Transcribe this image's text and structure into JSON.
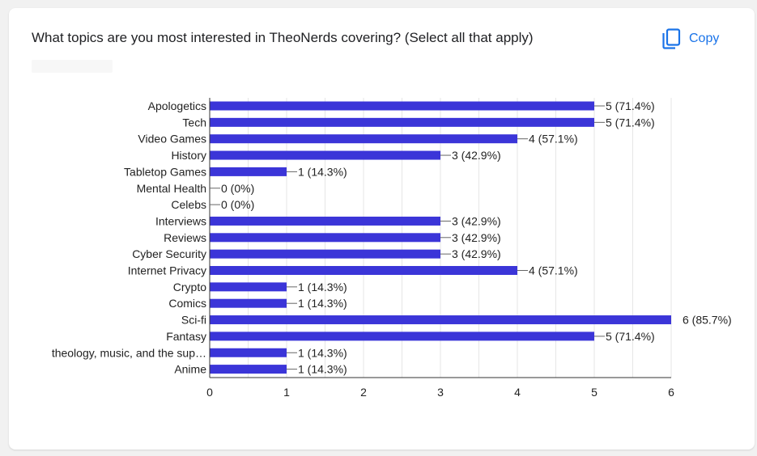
{
  "question": {
    "title": "What topics are you most interested in TheoNerds covering? (Select all that apply)"
  },
  "copy_button": {
    "label": "Copy",
    "icon": "copy-icon"
  },
  "colors": {
    "bar": "#3b35d8",
    "link": "#1a73e8",
    "grid": "#e6e6e6"
  },
  "chart_data": {
    "type": "bar",
    "orientation": "horizontal",
    "title": "",
    "xlabel": "",
    "ylabel": "",
    "xlim": [
      0,
      6
    ],
    "xticks": [
      0,
      1,
      2,
      3,
      4,
      5,
      6
    ],
    "grid": true,
    "categories": [
      "Apologetics",
      "Tech",
      "Video Games",
      "History",
      "Tabletop Games",
      "Mental Health",
      "Celebs",
      "Interviews",
      "Reviews",
      "Cyber Security",
      "Internet Privacy",
      "Crypto",
      "Comics",
      "Sci-fi",
      "Fantasy",
      "theology, music, and the sup…",
      "Anime"
    ],
    "values": [
      5,
      5,
      4,
      3,
      1,
      0,
      0,
      3,
      3,
      3,
      4,
      1,
      1,
      6,
      5,
      1,
      1
    ],
    "value_labels": [
      "5 (71.4%)",
      "5 (71.4%)",
      "4 (57.1%)",
      "3 (42.9%)",
      "1 (14.3%)",
      "0 (0%)",
      "0 (0%)",
      "3 (42.9%)",
      "3 (42.9%)",
      "3 (42.9%)",
      "4 (57.1%)",
      "1 (14.3%)",
      "1 (14.3%)",
      "6 (85.7%)",
      "5 (71.4%)",
      "1 (14.3%)",
      "1 (14.3%)"
    ]
  }
}
